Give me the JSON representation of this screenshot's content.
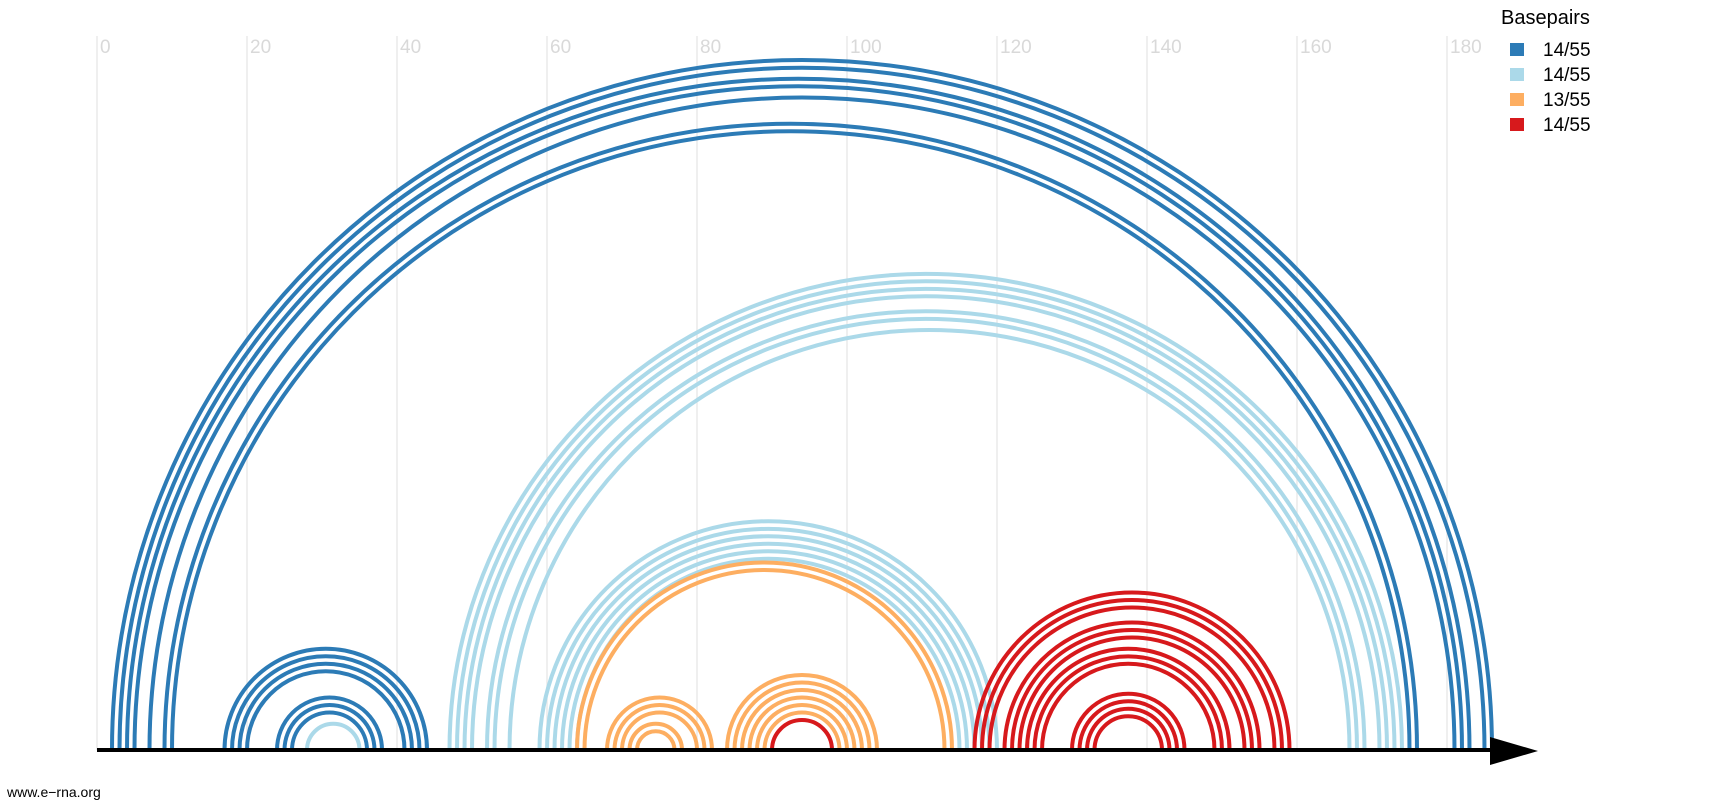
{
  "chart_data": {
    "type": "arc",
    "x_ticks": [
      "0",
      "20",
      "40",
      "60",
      "80",
      "100",
      "120",
      "140",
      "160",
      "180"
    ],
    "x_range": [
      0,
      187
    ],
    "legend": {
      "title": "Basepairs",
      "position": "top-right",
      "entries": [
        {
          "label": "14/55",
          "color": "#2c7bb6"
        },
        {
          "label": "14/55",
          "color": "#abd9e9"
        },
        {
          "label": "13/55",
          "color": "#fdae61"
        },
        {
          "label": "14/55",
          "color": "#d7191c"
        }
      ]
    },
    "arcs": [
      {
        "i": 2,
        "j": 186,
        "group": 0
      },
      {
        "i": 3,
        "j": 185,
        "group": 0
      },
      {
        "i": 4,
        "j": 183,
        "group": 0
      },
      {
        "i": 5,
        "j": 182,
        "group": 0
      },
      {
        "i": 7,
        "j": 181,
        "group": 0
      },
      {
        "i": 9,
        "j": 176,
        "group": 0
      },
      {
        "i": 10,
        "j": 175,
        "group": 0
      },
      {
        "i": 17,
        "j": 44,
        "group": 0
      },
      {
        "i": 18,
        "j": 43,
        "group": 0
      },
      {
        "i": 19,
        "j": 42,
        "group": 0
      },
      {
        "i": 20,
        "j": 41,
        "group": 0
      },
      {
        "i": 24,
        "j": 38,
        "group": 0
      },
      {
        "i": 25,
        "j": 37,
        "group": 0
      },
      {
        "i": 26,
        "j": 36,
        "group": 0
      },
      {
        "i": 28,
        "j": 35,
        "group": 1
      },
      {
        "i": 47,
        "j": 174,
        "group": 1
      },
      {
        "i": 48,
        "j": 173,
        "group": 1
      },
      {
        "i": 49,
        "j": 172,
        "group": 1
      },
      {
        "i": 50,
        "j": 171,
        "group": 1
      },
      {
        "i": 52,
        "j": 169,
        "group": 1
      },
      {
        "i": 53,
        "j": 168,
        "group": 1
      },
      {
        "i": 55,
        "j": 167,
        "group": 1
      },
      {
        "i": 59,
        "j": 120,
        "group": 1
      },
      {
        "i": 60,
        "j": 119,
        "group": 1
      },
      {
        "i": 61,
        "j": 118,
        "group": 1
      },
      {
        "i": 62,
        "j": 117,
        "group": 1
      },
      {
        "i": 63,
        "j": 116,
        "group": 1
      },
      {
        "i": 64,
        "j": 115,
        "group": 1
      },
      {
        "i": 64,
        "j": 114,
        "group": 2
      },
      {
        "i": 65,
        "j": 113,
        "group": 2
      },
      {
        "i": 68,
        "j": 82,
        "group": 2
      },
      {
        "i": 69,
        "j": 81,
        "group": 2
      },
      {
        "i": 70,
        "j": 80,
        "group": 2
      },
      {
        "i": 71,
        "j": 78,
        "group": 2
      },
      {
        "i": 72,
        "j": 77,
        "group": 2
      },
      {
        "i": 84,
        "j": 104,
        "group": 2
      },
      {
        "i": 85,
        "j": 103,
        "group": 2
      },
      {
        "i": 86,
        "j": 102,
        "group": 2
      },
      {
        "i": 87,
        "j": 101,
        "group": 2
      },
      {
        "i": 88,
        "j": 100,
        "group": 2
      },
      {
        "i": 89,
        "j": 99,
        "group": 2
      },
      {
        "i": 90,
        "j": 98,
        "group": 3
      },
      {
        "i": 117,
        "j": 159,
        "group": 3
      },
      {
        "i": 118,
        "j": 158,
        "group": 3
      },
      {
        "i": 119,
        "j": 157,
        "group": 3
      },
      {
        "i": 121,
        "j": 155,
        "group": 3
      },
      {
        "i": 122,
        "j": 154,
        "group": 3
      },
      {
        "i": 123,
        "j": 153,
        "group": 3
      },
      {
        "i": 124,
        "j": 151,
        "group": 3
      },
      {
        "i": 125,
        "j": 150,
        "group": 3
      },
      {
        "i": 126,
        "j": 149,
        "group": 3
      },
      {
        "i": 130,
        "j": 145,
        "group": 3
      },
      {
        "i": 131,
        "j": 144,
        "group": 3
      },
      {
        "i": 132,
        "j": 143,
        "group": 3
      },
      {
        "i": 133,
        "j": 142,
        "group": 3
      }
    ]
  },
  "footer": {
    "text": "www.e−rna.org"
  }
}
